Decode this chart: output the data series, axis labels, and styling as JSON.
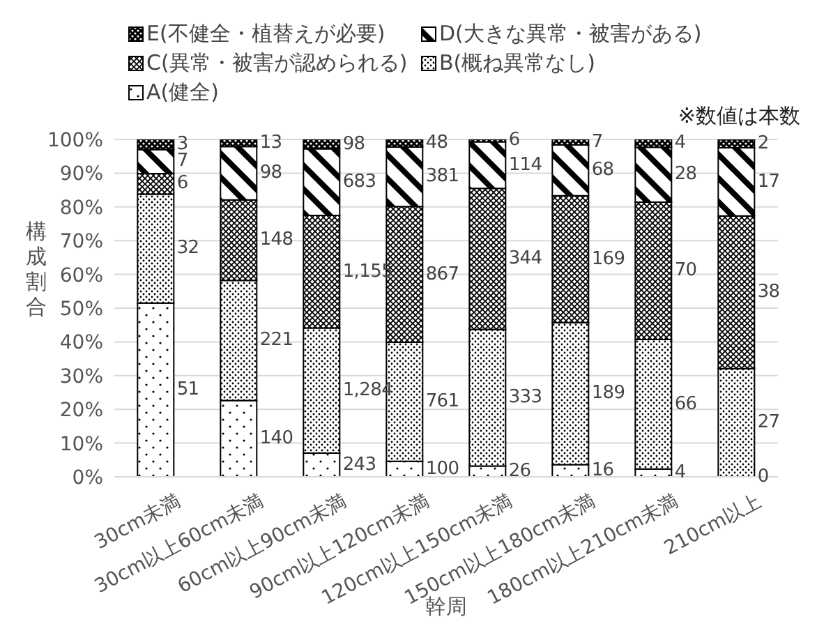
{
  "chart_data": {
    "type": "bar",
    "stacked": true,
    "xlabel": "幹周",
    "ylabel": "構成割合",
    "categories": [
      "30cm未満",
      "30cm以上60cm未満",
      "60cm以上90cm未満",
      "90cm以上120cm未満",
      "120cm以上150cm未満",
      "150cm以上180cm未満",
      "180cm以上210cm未満",
      "210cm以上"
    ],
    "series": [
      {
        "name": "A(健全)",
        "color": "#000000",
        "values": [
          51.5,
          22.6,
          7.0,
          4.6,
          3.2,
          3.6,
          2.3,
          0
        ]
      },
      {
        "name": "B(概ね異常なし)",
        "color": "#000000",
        "values": [
          32.3,
          35.6,
          37.1,
          35.3,
          40.5,
          42.1,
          38.4,
          32.1
        ]
      },
      {
        "name": "C(異常・被害が認められる)",
        "color": "#000000",
        "values": [
          6.1,
          23.9,
          33.4,
          40.2,
          41.8,
          37.6,
          40.7,
          45.2
        ]
      },
      {
        "name": "D(大きな異常・被害がある)",
        "color": "#000000",
        "values": [
          7.1,
          15.8,
          19.7,
          17.7,
          13.8,
          15.1,
          16.3,
          20.2
        ]
      },
      {
        "name": "E(不健全・植替えが必要)",
        "color": "#000000",
        "values": [
          3.0,
          2.1,
          2.8,
          2.2,
          0.7,
          1.6,
          2.3,
          2.4
        ]
      }
    ],
    "annotations": [
      "※数値は本数",
      {
        "text": "51",
        "x": "30cm未満",
        "y": 25.8
      },
      {
        "text": "32",
        "x": "30cm未満",
        "y": 67.7
      },
      {
        "text": "6",
        "x": "30cm未満",
        "y": 86.9
      },
      {
        "text": "7",
        "x": "30cm未満",
        "y": 93.5
      },
      {
        "text": "3",
        "x": "30cm未満",
        "y": 98.5
      },
      {
        "text": "140",
        "x": "30cm以上60cm未満",
        "y": 11.3
      },
      {
        "text": "221",
        "x": "30cm以上60cm未満",
        "y": 40.4
      },
      {
        "text": "148",
        "x": "30cm以上60cm未満",
        "y": 70.2
      },
      {
        "text": "98",
        "x": "30cm以上60cm未満",
        "y": 90.0
      },
      {
        "text": "13",
        "x": "30cm以上60cm未満",
        "y": 99.0
      },
      {
        "text": "243",
        "x": "60cm以上90cm未満",
        "y": 3.5
      },
      {
        "text": "1,284",
        "x": "60cm以上90cm未満",
        "y": 25.6
      },
      {
        "text": "1,155",
        "x": "60cm以上90cm未満",
        "y": 60.8
      },
      {
        "text": "683",
        "x": "60cm以上90cm未満",
        "y": 87.4
      },
      {
        "text": "98",
        "x": "60cm以上90cm未満",
        "y": 98.6
      },
      {
        "text": "100",
        "x": "90cm以上120cm未満",
        "y": 2.3
      },
      {
        "text": "761",
        "x": "90cm以上120cm未満",
        "y": 22.3
      },
      {
        "text": "867",
        "x": "90cm以上120cm未満",
        "y": 60.0
      },
      {
        "text": "381",
        "x": "90cm以上120cm未満",
        "y": 89.0
      },
      {
        "text": "48",
        "x": "90cm以上120cm未満",
        "y": 98.9
      },
      {
        "text": "26",
        "x": "120cm以上150cm未満",
        "y": 1.6
      },
      {
        "text": "333",
        "x": "120cm以上150cm未満",
        "y": 23.5
      },
      {
        "text": "344",
        "x": "120cm以上150cm未満",
        "y": 64.6
      },
      {
        "text": "114",
        "x": "120cm以上150cm未満",
        "y": 92.4
      },
      {
        "text": "6",
        "x": "120cm以上150cm未満",
        "y": 99.7
      },
      {
        "text": "16",
        "x": "150cm以上180cm未満",
        "y": 1.8
      },
      {
        "text": "189",
        "x": "150cm以上180cm未満",
        "y": 24.7
      },
      {
        "text": "169",
        "x": "150cm以上180cm未満",
        "y": 64.5
      },
      {
        "text": "68",
        "x": "150cm以上180cm未満",
        "y": 90.9
      },
      {
        "text": "7",
        "x": "150cm以上180cm未満",
        "y": 99.2
      },
      {
        "text": "4",
        "x": "180cm以上210cm未満",
        "y": 1.2
      },
      {
        "text": "66",
        "x": "180cm以上210cm未満",
        "y": 21.5
      },
      {
        "text": "70",
        "x": "180cm以上210cm未満",
        "y": 61.1
      },
      {
        "text": "28",
        "x": "180cm以上210cm未満",
        "y": 89.6
      },
      {
        "text": "4",
        "x": "180cm以上210cm未満",
        "y": 98.9
      },
      {
        "text": "0",
        "x": "210cm以上",
        "y": 0
      },
      {
        "text": "27",
        "x": "210cm以上",
        "y": 16.1
      },
      {
        "text": "38",
        "x": "210cm以上",
        "y": 54.7
      },
      {
        "text": "17",
        "x": "210cm以上",
        "y": 87.4
      },
      {
        "text": "2",
        "x": "210cm以上",
        "y": 98.8
      }
    ],
    "ylim": [
      0,
      100
    ],
    "yticks": [
      {
        "value": 0,
        "label": "0%"
      },
      {
        "value": 10,
        "label": "10%"
      },
      {
        "value": 20,
        "label": "20%"
      },
      {
        "value": 30,
        "label": "30%"
      },
      {
        "value": 40,
        "label": "40%"
      },
      {
        "value": 50,
        "label": "50%"
      },
      {
        "value": 60,
        "label": "60%"
      },
      {
        "value": 70,
        "label": "70%"
      },
      {
        "value": 80,
        "label": "80%"
      },
      {
        "value": 90,
        "label": "90%"
      },
      {
        "value": 100,
        "label": "100%"
      }
    ],
    "grid": "y",
    "legend": "top"
  }
}
